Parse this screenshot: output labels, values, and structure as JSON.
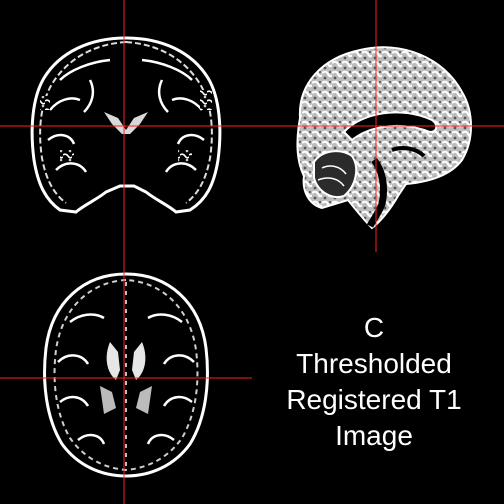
{
  "figure": {
    "panel_letter": "C",
    "caption_lines": [
      "Thresholded",
      "Registered T1",
      "Image"
    ],
    "crosshair_color": "#ff2020",
    "background_color": "#000000",
    "tissue_color": "#ffffff"
  },
  "views": [
    {
      "name": "coronal",
      "description_icon": "brain-coronal-slice-icon"
    },
    {
      "name": "sagittal",
      "description_icon": "brain-sagittal-slice-icon"
    },
    {
      "name": "axial",
      "description_icon": "brain-axial-slice-icon"
    }
  ]
}
